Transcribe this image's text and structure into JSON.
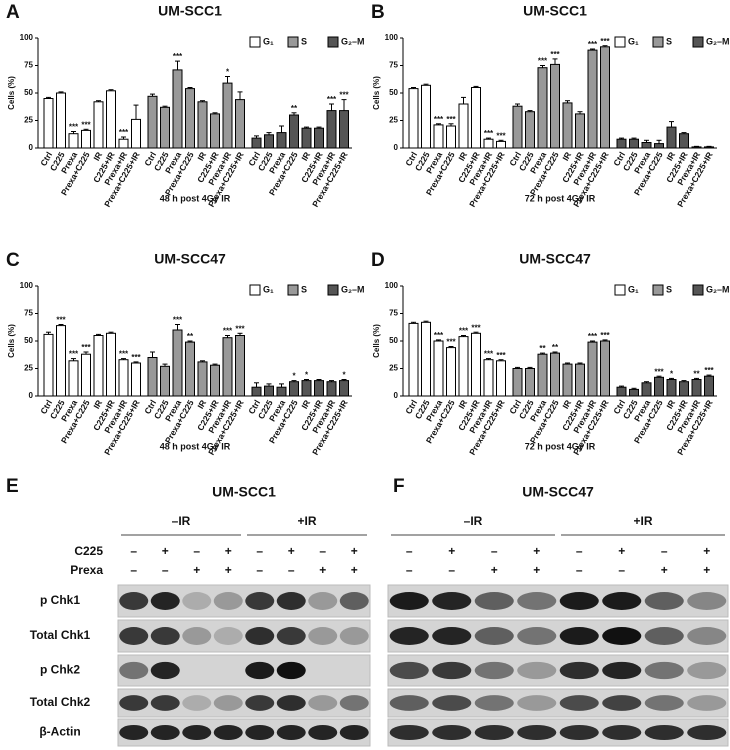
{
  "chart_data": [
    {
      "type": "bar",
      "panel": "A",
      "title": "UM-SCC1",
      "xlabel": "48 h post 4Gy IR",
      "ylabel": "Cells (%)",
      "categories": [
        "Ctrl",
        "C225",
        "Prexa",
        "Prexa+C225",
        "IR",
        "C225+IR",
        "Prexa+IR",
        "Prexa+C225+IR"
      ],
      "ylim": [
        0,
        100
      ],
      "yticks": [
        0,
        25,
        50,
        75,
        100
      ],
      "series": [
        {
          "name": "G₁",
          "color": "#ffffff",
          "values": [
            45,
            50,
            13,
            16,
            42,
            52,
            8,
            26
          ],
          "errors": [
            1,
            1,
            2,
            1,
            1,
            1,
            2,
            13
          ],
          "significance": [
            null,
            null,
            "***",
            "***",
            null,
            null,
            "***",
            null
          ]
        },
        {
          "name": "S",
          "color": "#999999",
          "values": [
            47,
            37,
            71,
            54,
            42,
            31,
            59,
            44
          ],
          "errors": [
            2,
            1,
            8,
            1,
            1,
            1,
            6,
            7
          ],
          "significance": [
            null,
            null,
            "***",
            null,
            null,
            null,
            "*",
            null
          ]
        },
        {
          "name": "G₂–M",
          "color": "#555555",
          "values": [
            9,
            12,
            14,
            30,
            18,
            18,
            34,
            34
          ],
          "errors": [
            2,
            2,
            6,
            2,
            1,
            1,
            6,
            10
          ],
          "significance": [
            null,
            null,
            null,
            "**",
            null,
            null,
            "***",
            "***"
          ]
        }
      ]
    },
    {
      "type": "bar",
      "panel": "B",
      "title": "UM-SCC1",
      "xlabel": "72 h post 4Gy IR",
      "ylabel": "Cells (%)",
      "categories": [
        "Ctrl",
        "C225",
        "Prexa",
        "Prexa+C225",
        "IR",
        "C225+IR",
        "Prexa+IR",
        "Prexa+C225+IR"
      ],
      "ylim": [
        0,
        100
      ],
      "yticks": [
        0,
        25,
        50,
        75,
        100
      ],
      "series": [
        {
          "name": "G₁",
          "color": "#ffffff",
          "values": [
            54,
            57,
            21,
            20,
            40,
            55,
            8,
            6
          ],
          "errors": [
            1,
            1,
            1,
            2,
            6,
            1,
            1,
            1
          ],
          "significance": [
            null,
            null,
            "***",
            "***",
            null,
            null,
            "***",
            "***"
          ]
        },
        {
          "name": "S",
          "color": "#999999",
          "values": [
            38,
            33,
            73,
            76,
            41,
            31,
            89,
            92
          ],
          "errors": [
            2,
            1,
            2,
            5,
            2,
            2,
            1,
            1
          ],
          "significance": [
            null,
            null,
            "***",
            "***",
            null,
            null,
            "***",
            "***"
          ]
        },
        {
          "name": "G₂–M",
          "color": "#555555",
          "values": [
            8,
            8,
            5,
            4,
            19,
            13,
            1,
            1
          ],
          "errors": [
            1,
            1,
            2,
            3,
            5,
            1,
            0.5,
            0.5
          ],
          "significance": [
            null,
            null,
            null,
            null,
            null,
            null,
            null,
            null
          ]
        }
      ]
    },
    {
      "type": "bar",
      "panel": "C",
      "title": "UM-SCC47",
      "xlabel": "48 h post 4Gy IR",
      "ylabel": "Cells (%)",
      "categories": [
        "Ctrl",
        "C225",
        "Prexa",
        "Prexa+C225",
        "IR",
        "C225+IR",
        "Prexa+IR",
        "Prexa+C225+IR"
      ],
      "ylim": [
        0,
        100
      ],
      "yticks": [
        0,
        25,
        50,
        75,
        100
      ],
      "series": [
        {
          "name": "G₁",
          "color": "#ffffff",
          "values": [
            56,
            64,
            32,
            38,
            55,
            57,
            33,
            30
          ],
          "errors": [
            2,
            1,
            2,
            2,
            1,
            1,
            1,
            1
          ],
          "significance": [
            null,
            "***",
            "***",
            "***",
            null,
            null,
            "***",
            "***"
          ]
        },
        {
          "name": "S",
          "color": "#999999",
          "values": [
            35,
            27,
            60,
            49,
            31,
            28,
            53,
            55
          ],
          "errors": [
            5,
            2,
            5,
            1,
            1,
            1,
            2,
            2
          ],
          "significance": [
            null,
            null,
            "***",
            "**",
            null,
            null,
            "***",
            "***"
          ]
        },
        {
          "name": "G₂–M",
          "color": "#555555",
          "values": [
            8,
            9,
            8,
            13,
            14,
            14,
            13,
            14
          ],
          "errors": [
            4,
            2,
            3,
            1,
            1,
            1,
            1,
            1
          ],
          "significance": [
            null,
            null,
            null,
            "*",
            "*",
            null,
            null,
            "*"
          ]
        }
      ]
    },
    {
      "type": "bar",
      "panel": "D",
      "title": "UM-SCC47",
      "xlabel": "72 h post 4Gy IR",
      "ylabel": "Cells (%)",
      "categories": [
        "Ctrl",
        "C225",
        "Prexa",
        "Prexa+C225",
        "IR",
        "C225+IR",
        "Prexa+IR",
        "Prexa+C225+IR"
      ],
      "ylim": [
        0,
        100
      ],
      "yticks": [
        0,
        25,
        50,
        75,
        100
      ],
      "series": [
        {
          "name": "G₁",
          "color": "#ffffff",
          "values": [
            66,
            67,
            50,
            44,
            54,
            57,
            33,
            32
          ],
          "errors": [
            1,
            1,
            1,
            1,
            1,
            1,
            1,
            1
          ],
          "significance": [
            null,
            null,
            "***",
            "***",
            "***",
            "***",
            "***",
            "***"
          ]
        },
        {
          "name": "S",
          "color": "#999999",
          "values": [
            25,
            25,
            38,
            39,
            29,
            29,
            49,
            50
          ],
          "errors": [
            1,
            1,
            1,
            1,
            1,
            1,
            1,
            1
          ],
          "significance": [
            null,
            null,
            "**",
            "**",
            null,
            null,
            "***",
            "***"
          ]
        },
        {
          "name": "G₂–M",
          "color": "#555555",
          "values": [
            8,
            6,
            12,
            17,
            15,
            13,
            15,
            18
          ],
          "errors": [
            1,
            1,
            1,
            1,
            1,
            1,
            1,
            1
          ],
          "significance": [
            null,
            null,
            null,
            "***",
            "*",
            null,
            "**",
            "***"
          ]
        }
      ]
    }
  ],
  "blots": {
    "row_labels": [
      "p Chk1",
      "Total Chk1",
      "p Chk2",
      "Total Chk2",
      "β-Actin"
    ],
    "treatments": [
      "C225",
      "Prexa"
    ],
    "panels": [
      {
        "panel": "E",
        "title": "UM-SCC1",
        "ir_labels": [
          "–IR",
          "+IR"
        ],
        "signs": [
          [
            "–",
            "+",
            "–",
            "+",
            "–",
            "+",
            "–",
            "+"
          ],
          [
            "–",
            "–",
            "+",
            "+",
            "–",
            "–",
            "+",
            "+"
          ]
        ]
      },
      {
        "panel": "F",
        "title": "UM-SCC47",
        "ir_labels": [
          "–IR",
          "+IR"
        ],
        "signs": [
          [
            "–",
            "+",
            "–",
            "+",
            "–",
            "+",
            "–",
            "+"
          ],
          [
            "–",
            "–",
            "+",
            "+",
            "–",
            "–",
            "+",
            "+"
          ]
        ]
      }
    ]
  }
}
